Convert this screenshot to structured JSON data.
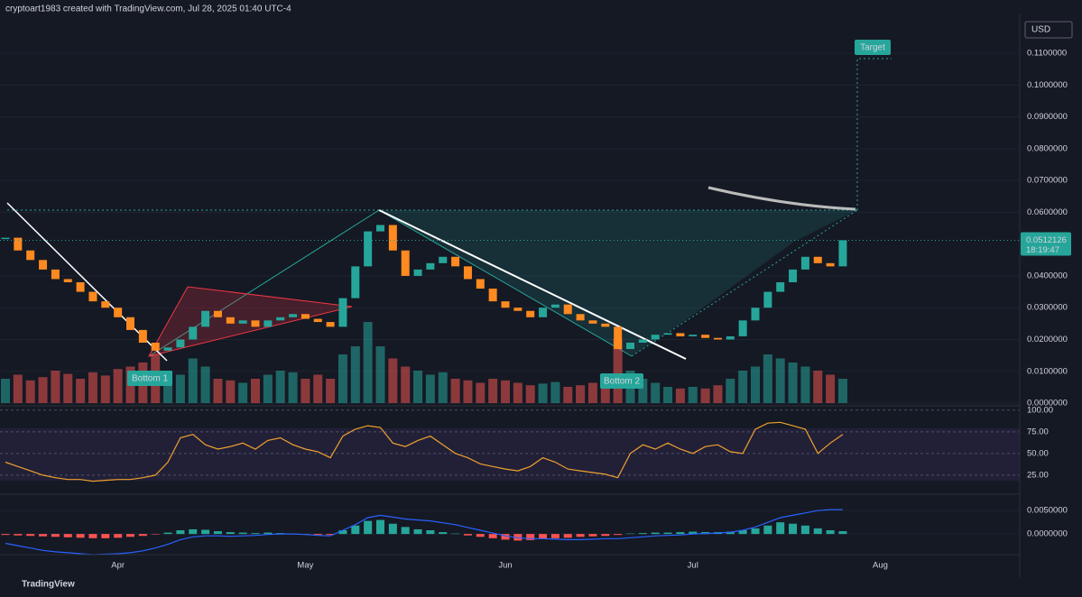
{
  "chart_data": {
    "type": "candlestick",
    "title": "cryptoart1983 created with TradingView.com, Jul 28, 2025 01:40 UTC-4",
    "brand": "TradingView",
    "currency": "USD",
    "last_price_label": "0.0512126",
    "countdown": "18:19:47",
    "annotations": [
      "Bottom 1",
      "Bottom 2",
      "Target"
    ],
    "up_color": "#26a69a",
    "down_color": "#ff8a1f",
    "categories": [
      null,
      null,
      null,
      null,
      null,
      null,
      null,
      null,
      null,
      "Apr",
      null,
      null,
      null,
      null,
      null,
      null,
      null,
      null,
      null,
      null,
      null,
      null,
      null,
      null,
      "May",
      null,
      null,
      null,
      null,
      null,
      null,
      null,
      null,
      null,
      null,
      null,
      null,
      null,
      null,
      null,
      "Jun",
      null,
      null,
      null,
      null,
      null,
      null,
      null,
      null,
      null,
      null,
      null,
      null,
      null,
      null,
      "Jul",
      null,
      null,
      null,
      null,
      null,
      null,
      null,
      null,
      null,
      null,
      null,
      null,
      null,
      null,
      "Aug"
    ],
    "close": [
      0.052,
      0.048,
      0.045,
      0.042,
      0.039,
      0.038,
      0.035,
      0.032,
      0.03,
      0.027,
      0.023,
      0.019,
      0.0165,
      0.0175,
      0.02,
      0.024,
      0.029,
      0.027,
      0.025,
      0.026,
      0.024,
      0.026,
      0.027,
      0.028,
      0.0265,
      0.0255,
      0.024,
      0.033,
      0.043,
      0.054,
      0.056,
      0.048,
      0.04,
      0.042,
      0.044,
      0.046,
      0.043,
      0.039,
      0.036,
      0.032,
      0.03,
      0.029,
      0.027,
      0.03,
      0.031,
      0.028,
      0.026,
      0.025,
      0.024,
      0.017,
      0.019,
      0.02,
      0.0215,
      0.022,
      0.021,
      0.0215,
      0.0205,
      0.02,
      0.021,
      0.026,
      0.03,
      0.035,
      0.038,
      0.042,
      0.046,
      0.044,
      0.043,
      0.0512,
      null,
      null,
      null
    ],
    "volume": [
      30,
      35,
      28,
      32,
      40,
      36,
      30,
      38,
      34,
      42,
      45,
      50,
      60,
      40,
      35,
      55,
      45,
      30,
      28,
      25,
      30,
      35,
      40,
      38,
      30,
      35,
      30,
      60,
      70,
      100,
      70,
      55,
      45,
      40,
      35,
      38,
      30,
      28,
      25,
      30,
      28,
      25,
      22,
      24,
      26,
      20,
      22,
      25,
      30,
      80,
      40,
      30,
      25,
      20,
      18,
      20,
      18,
      22,
      30,
      40,
      45,
      60,
      55,
      50,
      45,
      40,
      35,
      30,
      null,
      null,
      null
    ],
    "rsi": [
      40,
      35,
      30,
      25,
      22,
      20,
      20,
      18,
      19,
      20,
      20,
      22,
      25,
      40,
      68,
      72,
      60,
      55,
      58,
      62,
      55,
      65,
      68,
      60,
      55,
      52,
      45,
      70,
      78,
      82,
      80,
      62,
      58,
      65,
      70,
      60,
      50,
      45,
      38,
      35,
      32,
      30,
      35,
      45,
      40,
      32,
      30,
      28,
      26,
      22,
      50,
      60,
      55,
      62,
      55,
      50,
      58,
      60,
      52,
      50,
      78,
      85,
      86,
      82,
      78,
      50,
      62,
      72,
      null,
      null,
      null
    ],
    "macd_histogram": [
      -0.0002,
      -0.0003,
      -0.0004,
      -0.0005,
      -0.0006,
      -0.0007,
      -0.0008,
      -0.0009,
      -0.0009,
      -0.0008,
      -0.0006,
      -0.0004,
      -0.0001,
      0.0003,
      0.0008,
      0.001,
      0.0009,
      0.0006,
      0.0004,
      0.0003,
      0.0002,
      0.0003,
      0.0002,
      0.0001,
      -0.0001,
      -0.0002,
      -0.0002,
      0.0008,
      0.0018,
      0.0028,
      0.003,
      0.0022,
      0.0015,
      0.001,
      0.0008,
      0.0004,
      0.0001,
      -0.0003,
      -0.0006,
      -0.0009,
      -0.0012,
      -0.0014,
      -0.0013,
      -0.001,
      -0.0009,
      -0.0008,
      -0.0006,
      -0.0005,
      -0.0004,
      -0.0002,
      0.0001,
      0.0002,
      0.0003,
      0.0003,
      0.0004,
      0.0005,
      0.0004,
      0.0004,
      0.0005,
      0.0008,
      0.0012,
      0.0018,
      0.0025,
      0.0022,
      0.0018,
      0.0012,
      0.0008,
      0.0006,
      null,
      null,
      null
    ],
    "macd": [
      -0.002,
      -0.0025,
      -0.003,
      -0.0035,
      -0.0038,
      -0.004,
      -0.0042,
      -0.0044,
      -0.0043,
      -0.0042,
      -0.004,
      -0.0036,
      -0.003,
      -0.0022,
      -0.0012,
      -0.0006,
      -0.0004,
      -0.0004,
      -0.0005,
      -0.0004,
      -0.0003,
      -0.0001,
      0.0,
      0.0,
      -0.0001,
      -0.0003,
      -0.0004,
      0.0008,
      0.002,
      0.0035,
      0.004,
      0.0036,
      0.0032,
      0.003,
      0.0028,
      0.0024,
      0.002,
      0.0014,
      0.0008,
      0.0002,
      -0.0004,
      -0.0008,
      -0.001,
      -0.001,
      -0.0011,
      -0.0012,
      -0.0012,
      -0.0011,
      -0.001,
      -0.001,
      -0.0008,
      -0.0006,
      -0.0004,
      -0.0003,
      -0.0002,
      0.0,
      0.0001,
      0.0002,
      0.0004,
      0.0008,
      0.0015,
      0.0025,
      0.0035,
      0.004,
      0.0045,
      0.005,
      0.0052,
      0.0052,
      null,
      null,
      null
    ],
    "ylim": [
      0,
      0.1225
    ],
    "yticks": [
      {
        "value": 0.11,
        "label": "0.1100000"
      },
      {
        "value": 0.1,
        "label": "0.1000000"
      },
      {
        "value": 0.09,
        "label": "0.0900000"
      },
      {
        "value": 0.08,
        "label": "0.0800000"
      },
      {
        "value": 0.07,
        "label": "0.0700000"
      },
      {
        "value": 0.06,
        "label": "0.0600000"
      },
      {
        "value": 0.04,
        "label": "0.0400000"
      },
      {
        "value": 0.03,
        "label": "0.0300000"
      },
      {
        "value": 0.02,
        "label": "0.0200000"
      },
      {
        "value": 0.01,
        "label": "0.0100000"
      },
      {
        "value": 0,
        "label": "0.0000000"
      }
    ],
    "rsi_ylim": [
      3,
      105
    ],
    "rsi_yticks": [
      {
        "value": 100,
        "label": "100.00"
      },
      {
        "value": 75,
        "label": "75.00"
      },
      {
        "value": 50,
        "label": "50.00"
      },
      {
        "value": 25,
        "label": "25.00"
      }
    ],
    "macd_ylim": [
      -0.0044,
      0.0085
    ],
    "macd_yticks": [
      {
        "value": 0.005,
        "label": "0.0050000"
      },
      {
        "value": 0,
        "label": "0.0000000"
      }
    ],
    "grid": true
  }
}
